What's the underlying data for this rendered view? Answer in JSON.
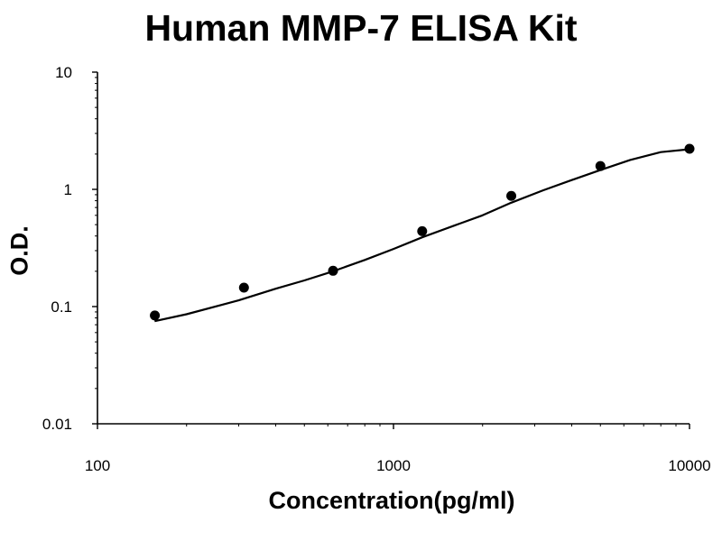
{
  "chart_data": {
    "type": "scatter",
    "title": "Human MMP-7 ELISA Kit",
    "xlabel": "Concentration(pg/ml)",
    "ylabel": "O.D.",
    "x_scale": "log",
    "y_scale": "log",
    "xlim": [
      100,
      10000
    ],
    "ylim": [
      0.01,
      10
    ],
    "x_tick_labels": [
      "100",
      "1000",
      "10000"
    ],
    "y_tick_labels": [
      "0.01",
      "0.1",
      "1",
      "10"
    ],
    "grid": false,
    "legend": "none",
    "series": [
      {
        "kind": "points",
        "x": [
          156.25,
          312.5,
          625,
          1250,
          2500,
          5000,
          10000
        ],
        "y": [
          0.084,
          0.145,
          0.202,
          0.44,
          0.88,
          1.58,
          2.22
        ]
      },
      {
        "kind": "fitted-curve",
        "x": [
          156,
          200,
          300,
          400,
          500,
          625,
          800,
          1000,
          1250,
          1600,
          2000,
          2500,
          3200,
          4000,
          5000,
          6300,
          8000,
          10000
        ],
        "y": [
          0.075,
          0.086,
          0.113,
          0.142,
          0.167,
          0.2,
          0.25,
          0.31,
          0.39,
          0.49,
          0.6,
          0.77,
          0.98,
          1.2,
          1.46,
          1.78,
          2.08,
          2.2
        ]
      }
    ],
    "colors": {
      "points": "#000000",
      "curve": "#000000",
      "axes": "#000000"
    }
  }
}
